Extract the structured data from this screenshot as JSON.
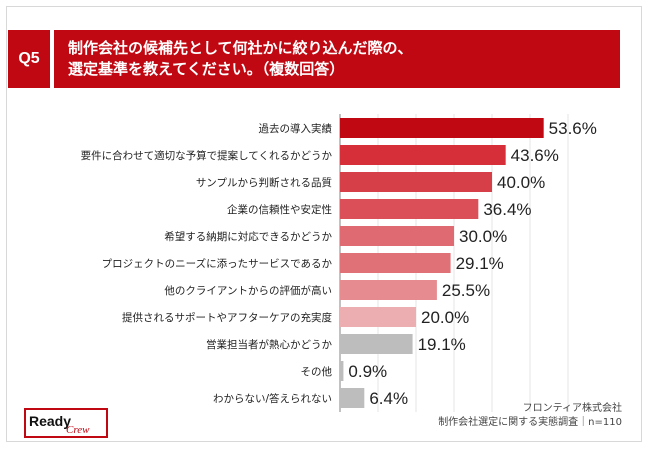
{
  "question": {
    "badge": "Q5",
    "title_line1": "制作会社の候補先として何社かに絞り込んだ際の、",
    "title_line2": "選定基準を教えてください。（複数回答）"
  },
  "chart_data": {
    "type": "bar",
    "orientation": "horizontal",
    "categories": [
      "過去の導入実績",
      "要件に合わせて適切な予算で提案してくれるかどうか",
      "サンプルから判断される品質",
      "企業の信頼性や安定性",
      "希望する納期に対応できるかどうか",
      "プロジェクトのニーズに添ったサービスであるか",
      "他のクライアントからの評価が高い",
      "提供されるサポートやアフターケアの充実度",
      "営業担当者が熱心かどうか",
      "その他",
      "わからない/答えられない"
    ],
    "values": [
      53.6,
      43.6,
      40.0,
      36.4,
      30.0,
      29.1,
      25.5,
      20.0,
      19.1,
      0.9,
      6.4
    ],
    "value_labels": [
      "53.6%",
      "43.6%",
      "40.0%",
      "36.4%",
      "30.0%",
      "29.1%",
      "25.5%",
      "20.0%",
      "19.1%",
      "0.9%",
      "6.4%"
    ],
    "bar_colors": [
      "#c00812",
      "#d62f3a",
      "#d73f48",
      "#db5058",
      "#df6a71",
      "#e07177",
      "#e68b90",
      "#ecaeb1",
      "#bdbdbd",
      "#bdbdbd",
      "#bdbdbd"
    ],
    "xlim": [
      0,
      60
    ],
    "grid": "vertical"
  },
  "source": {
    "line1": "フロンティア株式会社",
    "line2": "制作会社選定に関する実態調査｜n=110"
  },
  "logo": {
    "main": "Ready",
    "sub": "Crew"
  },
  "colors": {
    "accent": "#c00812",
    "gray": "#bdbdbd"
  }
}
